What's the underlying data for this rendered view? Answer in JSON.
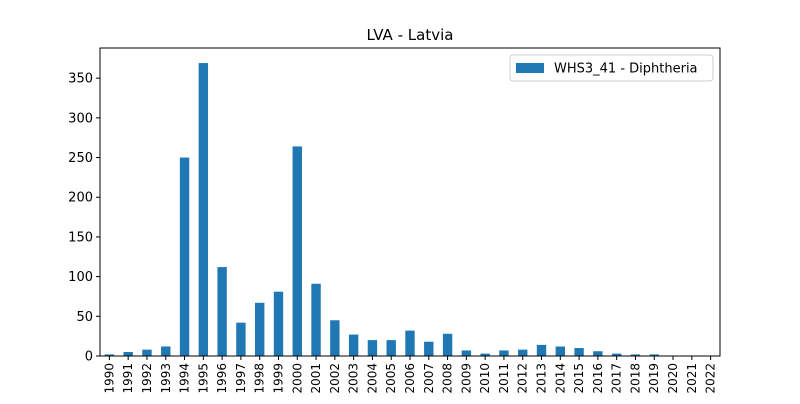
{
  "chart_data": {
    "type": "bar",
    "title": "LVA - Latvia",
    "xlabel": "",
    "ylabel": "",
    "categories": [
      "1990",
      "1991",
      "1992",
      "1993",
      "1994",
      "1995",
      "1996",
      "1997",
      "1998",
      "1999",
      "2000",
      "2001",
      "2002",
      "2003",
      "2004",
      "2005",
      "2006",
      "2007",
      "2008",
      "2009",
      "2010",
      "2011",
      "2012",
      "2013",
      "2014",
      "2015",
      "2016",
      "2017",
      "2018",
      "2019",
      "2020",
      "2021",
      "2022"
    ],
    "series": [
      {
        "name": "WHS3_41 - Diphtheria",
        "color": "#1f77b4",
        "values": [
          2,
          5,
          8,
          12,
          250,
          369,
          112,
          42,
          67,
          81,
          264,
          91,
          45,
          27,
          20,
          20,
          32,
          18,
          28,
          7,
          3,
          7,
          8,
          14,
          12,
          10,
          6,
          3,
          2,
          2,
          0,
          0,
          0
        ]
      }
    ],
    "ylim": [
      0,
      388
    ],
    "yticks": [
      0,
      50,
      100,
      150,
      200,
      250,
      300,
      350
    ],
    "grid": false,
    "legend_position": "top-right"
  }
}
